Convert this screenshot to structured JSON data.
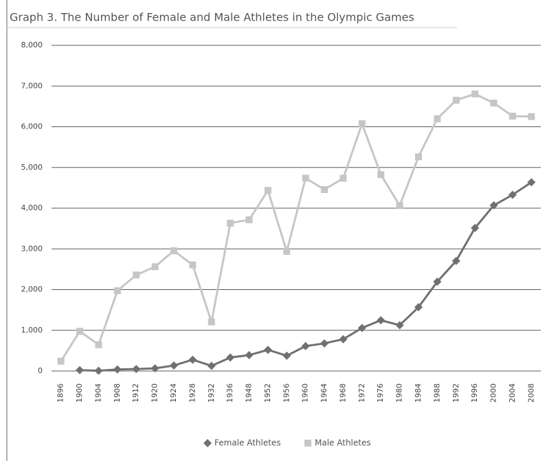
{
  "chart_data": {
    "type": "line",
    "title": "Graph 3. The Number of Female and Male Athletes in the Olympic Games",
    "categories": [
      "1896",
      "1900",
      "1904",
      "1908",
      "1912",
      "1920",
      "1924",
      "1928",
      "1932",
      "1936",
      "1948",
      "1952",
      "1956",
      "1960",
      "1964",
      "1968",
      "1972",
      "1976",
      "1980",
      "1984",
      "1988",
      "1992",
      "1996",
      "2000",
      "2004",
      "2008"
    ],
    "series": [
      {
        "name": "Female Athletes",
        "color": "#707070",
        "marker": "diamond",
        "values": [
          null,
          22,
          6,
          37,
          48,
          65,
          135,
          277,
          126,
          331,
          390,
          519,
          376,
          611,
          678,
          781,
          1058,
          1247,
          1125,
          1567,
          2194,
          2704,
          3512,
          4069,
          4329,
          4637
        ]
      },
      {
        "name": "Male Athletes",
        "color": "#c6c6c6",
        "marker": "square",
        "values": [
          241,
          975,
          645,
          1971,
          2359,
          2561,
          2954,
          2606,
          1206,
          3632,
          3714,
          4436,
          2938,
          4738,
          4457,
          4735,
          6075,
          4824,
          4064,
          5263,
          6197,
          6652,
          6806,
          6582,
          6262,
          6250
        ]
      }
    ],
    "ylim": [
      0,
      8000
    ],
    "yticks": [
      0,
      {
        "value": 1000,
        "label": "1,000"
      },
      {
        "value": 2000,
        "label": "2,000"
      },
      {
        "value": 3000,
        "label": "3,000"
      },
      {
        "value": 4000,
        "label": "4,000"
      },
      {
        "value": 5000,
        "label": "5,000"
      },
      {
        "value": 6000,
        "label": "6,000"
      },
      {
        "value": 7000,
        "label": "7,000"
      },
      {
        "value": 8000,
        "label": "8,000"
      }
    ],
    "grid": true,
    "legend": "bottom"
  }
}
